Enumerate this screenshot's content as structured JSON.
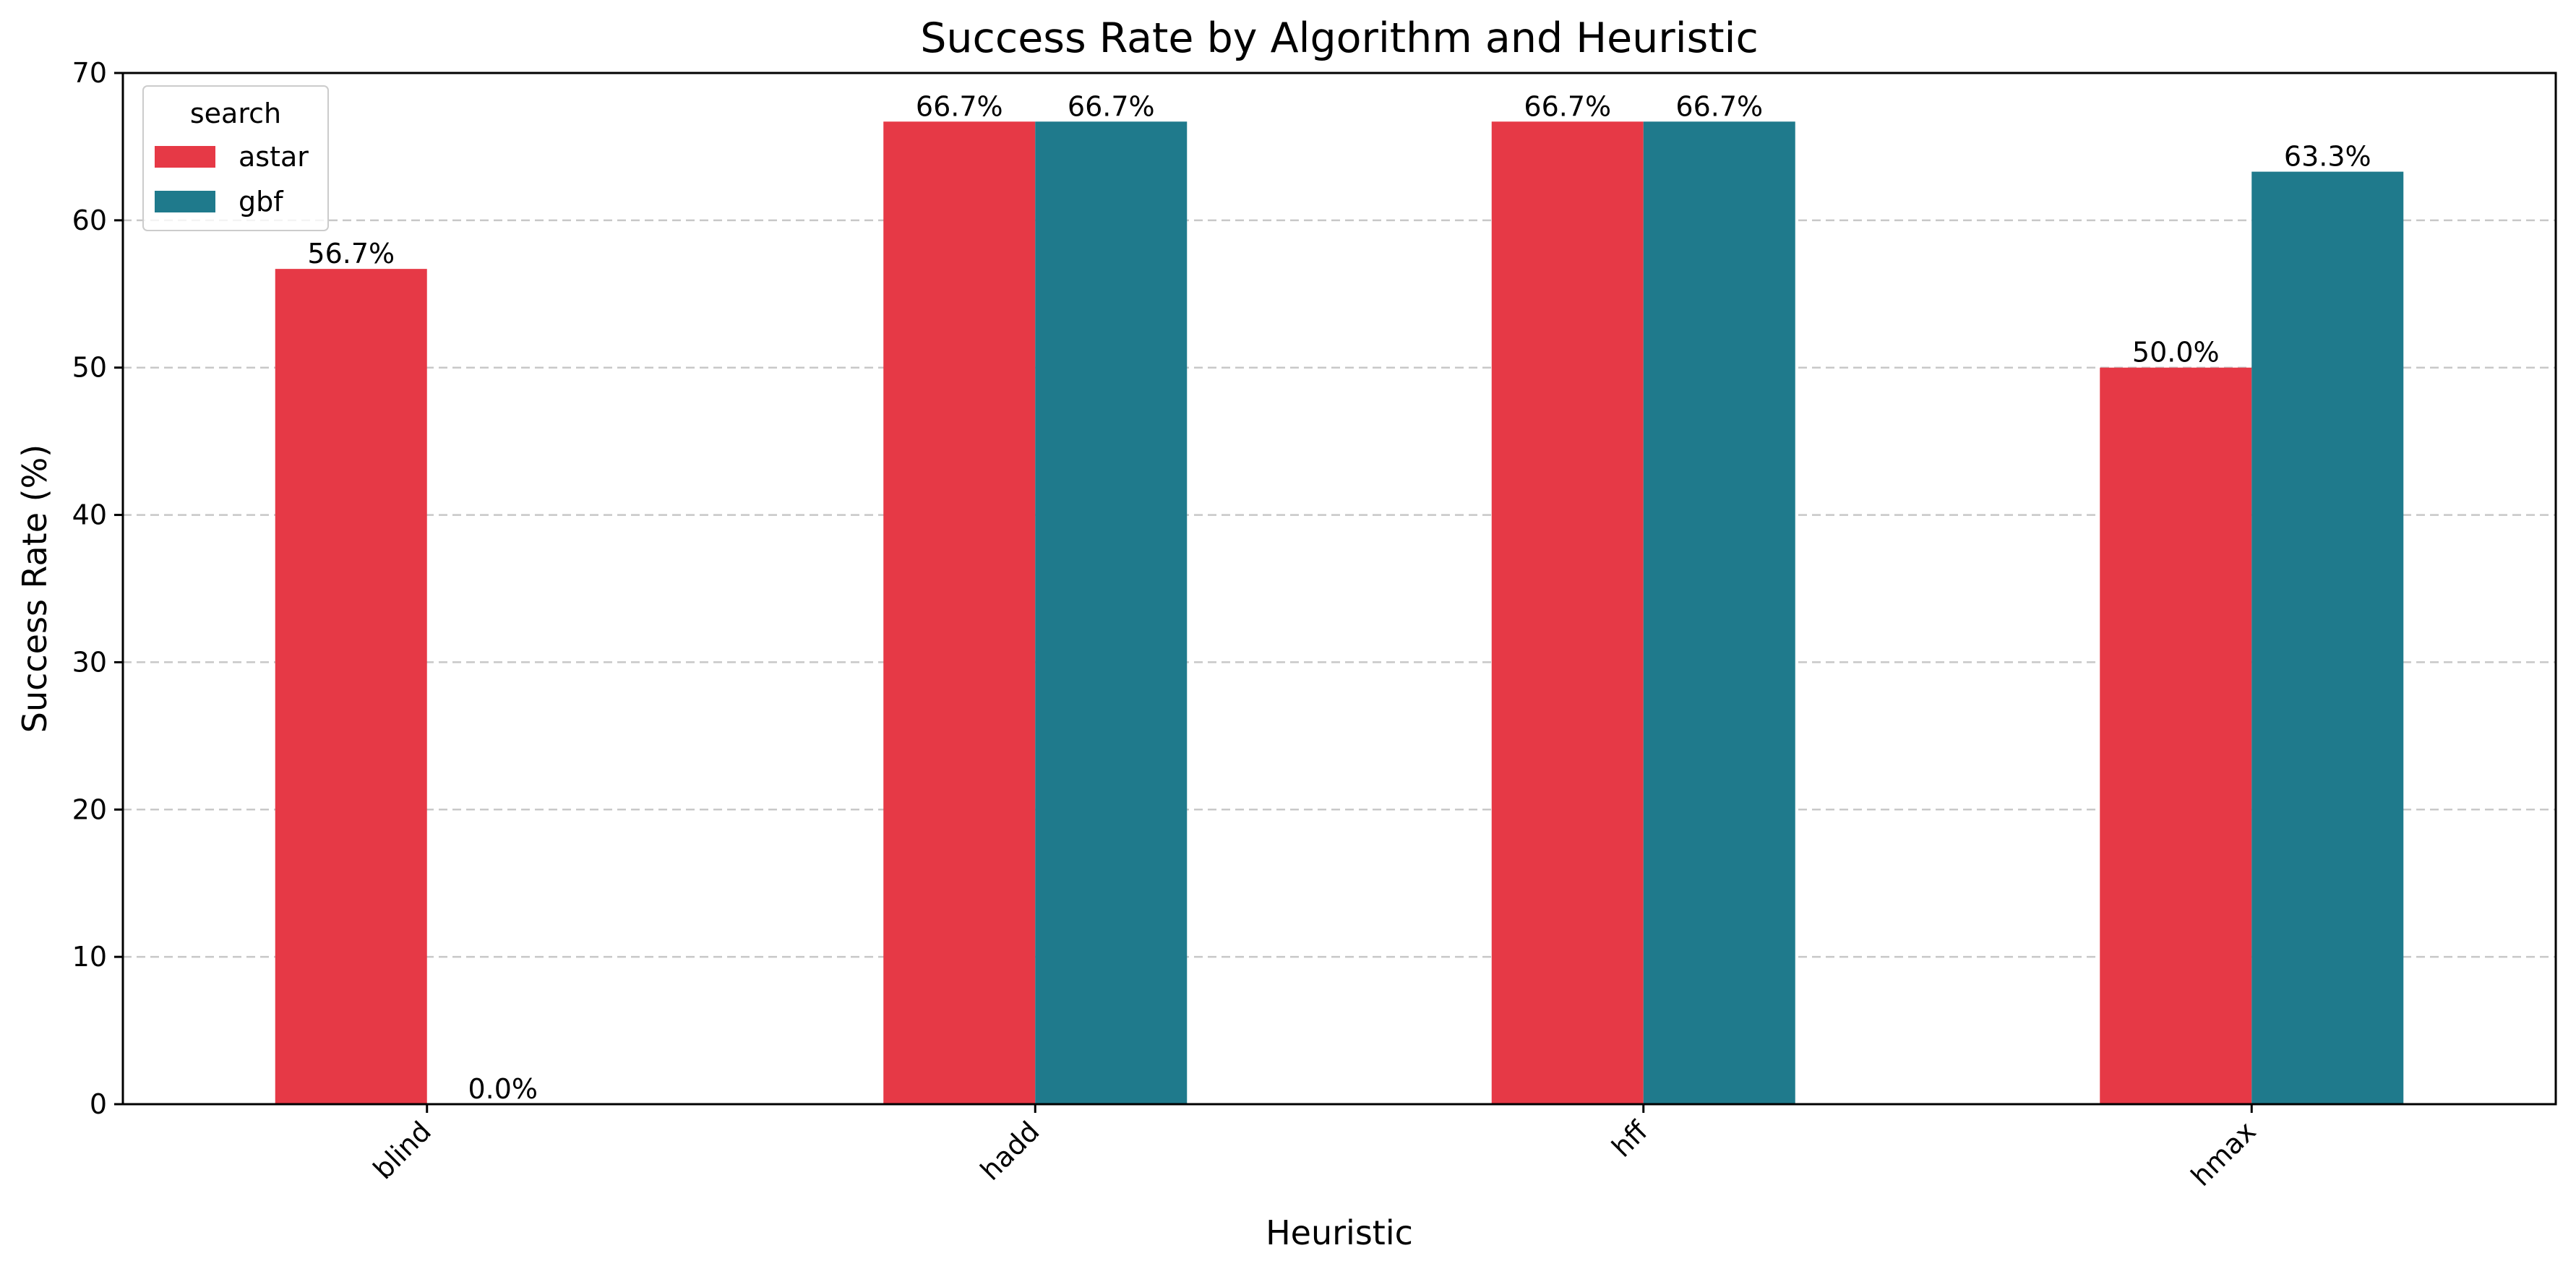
{
  "chart_data": {
    "type": "bar",
    "title": "Success Rate by Algorithm and Heuristic",
    "xlabel": "Heuristic",
    "ylabel": "Success Rate (%)",
    "categories": [
      "blind",
      "hadd",
      "hff",
      "hmax"
    ],
    "series": [
      {
        "name": "astar",
        "color": "#e63946",
        "values": [
          56.7,
          66.7,
          66.7,
          50.0
        ],
        "labels": [
          "56.7%",
          "66.7%",
          "66.7%",
          "50.0%"
        ]
      },
      {
        "name": "gbf",
        "color": "#1f7a8c",
        "values": [
          0.0,
          66.7,
          66.7,
          63.3
        ],
        "labels": [
          "0.0%",
          "66.7%",
          "66.7%",
          "63.3%"
        ]
      }
    ],
    "ylim": [
      0,
      70
    ],
    "yticks": [
      "0",
      "10",
      "20",
      "30",
      "40",
      "50",
      "60",
      "70"
    ],
    "grid": "y-dashed",
    "legend": {
      "title": "search",
      "placement": "top-left"
    }
  }
}
